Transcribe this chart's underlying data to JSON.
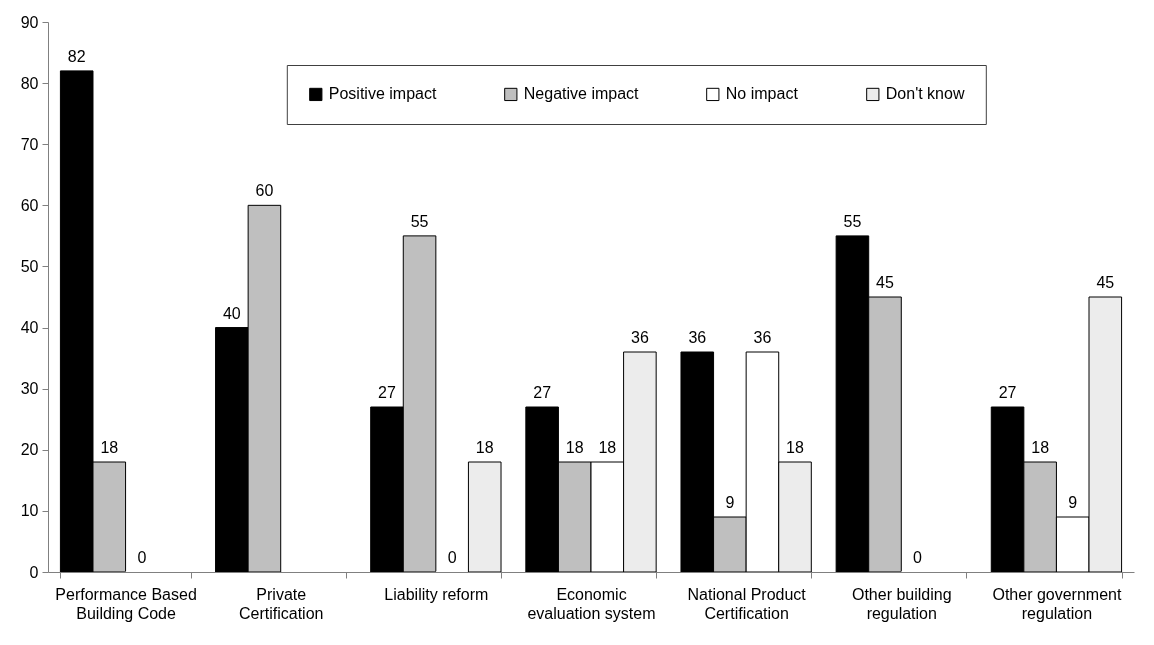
{
  "chart_data": {
    "type": "bar",
    "categories": [
      "Performance Based Building Code",
      "Private Certification",
      "Liability reform",
      "Economic evaluation system",
      "National Product Certification",
      "Other building regulation",
      "Other government regulation"
    ],
    "series": [
      {
        "name": "Positive impact",
        "color": "#000000",
        "values": [
          82,
          40,
          27,
          27,
          36,
          55,
          27
        ]
      },
      {
        "name": "Negative impact",
        "color": "#bfbfbf",
        "values": [
          18,
          60,
          55,
          18,
          9,
          45,
          18
        ]
      },
      {
        "name": "No impact",
        "color": "#ffffff",
        "values": [
          0,
          null,
          0,
          18,
          36,
          0,
          9
        ]
      },
      {
        "name": "Don't know",
        "color": "#ececec",
        "values": [
          null,
          null,
          18,
          36,
          18,
          null,
          45
        ]
      }
    ],
    "ylim": [
      0,
      90
    ],
    "yticks": [
      0,
      10,
      20,
      30,
      40,
      50,
      60,
      70,
      80,
      90
    ],
    "legend": "top",
    "data_labels": true
  }
}
